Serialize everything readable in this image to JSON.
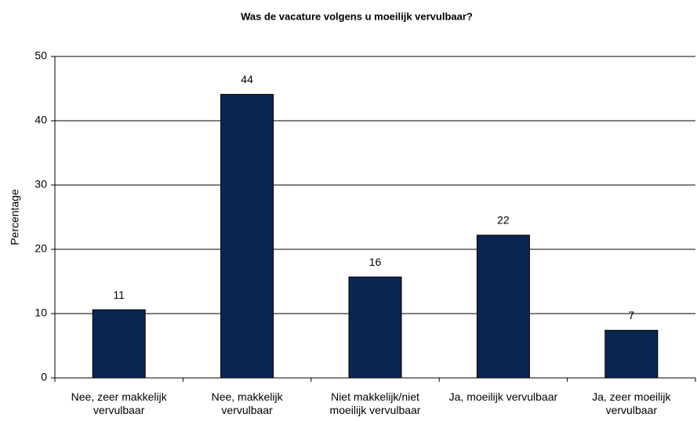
{
  "chart_data": {
    "type": "bar",
    "title": "Was de vacature volgens u moeilijk vervulbaar?",
    "y_label": "Percentage",
    "categories": [
      "Nee, zeer makkelijk vervulbaar",
      "Nee, makkelijk vervulbaar",
      "Niet makkelijk/niet moeilijk vervulbaar",
      "Ja, moeilijk vervulbaar",
      "Ja, zeer moeilijk vervulbaar"
    ],
    "values": [
      10.6,
      44.1,
      15.7,
      22.2,
      7.4
    ],
    "value_labels": [
      "11",
      "44",
      "16",
      "22",
      "7"
    ],
    "color": "#0a2550",
    "ylim": [
      0,
      50
    ],
    "yticks": [
      0,
      10,
      20,
      30,
      40,
      50
    ],
    "grid": true
  }
}
